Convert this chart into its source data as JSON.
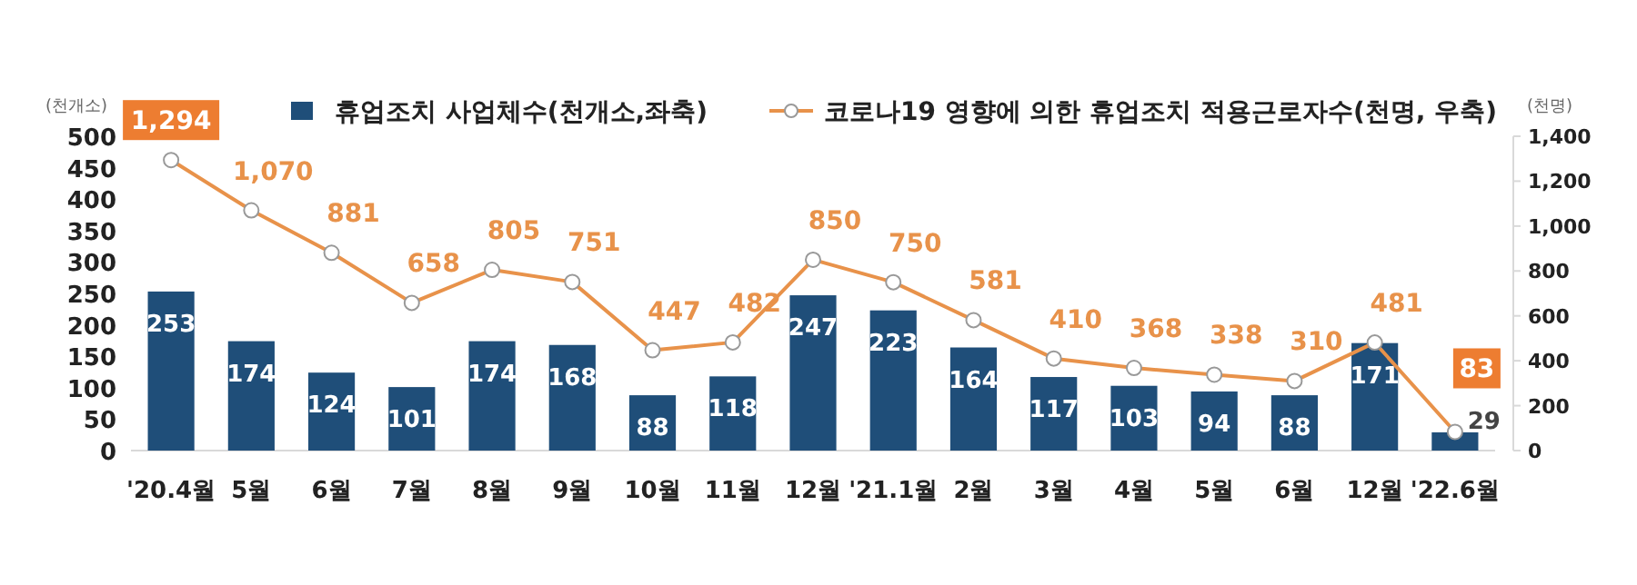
{
  "chart_data": {
    "type": "bar",
    "ylabel": "(천개소)",
    "y2label": "(천명)",
    "categories": [
      "'20.4월",
      "5월",
      "6월",
      "7월",
      "8월",
      "9월",
      "10월",
      "11월",
      "12월",
      "'21.1월",
      "2월",
      "3월",
      "4월",
      "5월",
      "6월",
      "12월",
      "'22.6월"
    ],
    "series": [
      {
        "name": "휴업조치 사업체수(천개소,좌축)",
        "color": "#1f4e79",
        "values": [
          253,
          174,
          124,
          101,
          174,
          168,
          88,
          118,
          247,
          223,
          164,
          117,
          103,
          94,
          88,
          171,
          29
        ]
      },
      {
        "name": "코로나19 영향에 의한 휴업조치 적용근로자수(천명, 우축)",
        "type": "line",
        "axis": "y2",
        "color": "#e8924a",
        "marker": "circle",
        "values": [
          1294,
          1070,
          881,
          658,
          805,
          751,
          447,
          482,
          850,
          750,
          581,
          410,
          368,
          338,
          310,
          481,
          83
        ],
        "value_labels": [
          "1,294",
          "1,070",
          "881",
          "658",
          "805",
          "751",
          "447",
          "482",
          "850",
          "750",
          "581",
          "410",
          "368",
          "338",
          "310",
          "481",
          "83"
        ]
      }
    ],
    "ylim": [
      0,
      500
    ],
    "yticks": [
      0,
      50,
      100,
      150,
      200,
      250,
      300,
      350,
      400,
      450,
      500
    ],
    "y2lim": [
      0,
      1400
    ],
    "y2ticks": [
      {
        "value": 0,
        "label": "0"
      },
      {
        "value": 200,
        "label": "200"
      },
      {
        "value": 400,
        "label": "400"
      },
      {
        "value": 600,
        "label": "600"
      },
      {
        "value": 800,
        "label": "800"
      },
      {
        "value": 1000,
        "label": "1,000"
      },
      {
        "value": 1200,
        "label": "1,200"
      },
      {
        "value": 1400,
        "label": "1,400"
      }
    ],
    "data_labels": true,
    "legend": "top",
    "grid": false
  }
}
